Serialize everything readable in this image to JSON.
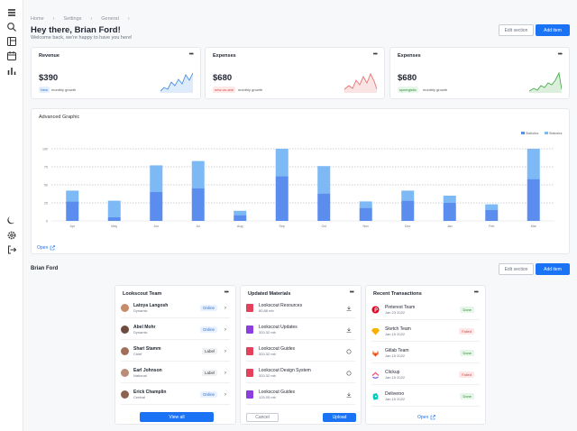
{
  "breadcrumbs": [
    "Home",
    "Settings",
    "General"
  ],
  "header": {
    "title": "Hey there, Brian Ford!",
    "subtitle": "Welcome back, we're happy to have you here!",
    "edit_label": "Edit section",
    "add_label": "Add item"
  },
  "kpis": [
    {
      "title": "Revenue",
      "value": "$390",
      "badge": "New",
      "note": "monthly growth",
      "color": "#4a90e2"
    },
    {
      "title": "Expenses",
      "value": "$680",
      "badge": "new-on-ane",
      "note": "monthly growth",
      "color": "#e57373"
    },
    {
      "title": "Expenses",
      "value": "$680",
      "badge": "synergistic",
      "note": "monthly growth",
      "color": "#4caf50"
    }
  ],
  "chart_data": {
    "type": "bar",
    "title": "Advanced Graphic",
    "categories": [
      "Apr",
      "May",
      "Jun",
      "Jul",
      "Aug",
      "Sep",
      "Oct",
      "Nov",
      "Dec",
      "Jan",
      "Feb",
      "Mar"
    ],
    "series": [
      {
        "name": "Statistics",
        "values": [
          27,
          5,
          40,
          45,
          8,
          62,
          38,
          18,
          28,
          25,
          15,
          58
        ]
      },
      {
        "name": "Statistics",
        "values": [
          15,
          23,
          37,
          38,
          6,
          38,
          38,
          9,
          14,
          10,
          8,
          42
        ]
      }
    ],
    "ylim": [
      0,
      100
    ],
    "yticks": [
      0,
      25,
      50,
      75,
      100
    ],
    "stacked": true,
    "legend_position": "top-right",
    "colors": [
      "#5b8def",
      "#7cb9f5"
    ],
    "open_label": "Open"
  },
  "section2": {
    "title": "Brian Ford",
    "edit_label": "Edit section",
    "add_label": "Add item"
  },
  "team": {
    "title": "Lookscout Team",
    "members": [
      {
        "name": "Latoya Langosh",
        "role": "Dynamic",
        "tag": "Online"
      },
      {
        "name": "Abel Mohr",
        "role": "Dynamic",
        "tag": "Online"
      },
      {
        "name": "Shari Stamm",
        "role": "Chief",
        "tag": "Label"
      },
      {
        "name": "Earl Johnson",
        "role": "National",
        "tag": "Label"
      },
      {
        "name": "Erick Champlin",
        "role": "Central",
        "tag": "Online"
      }
    ],
    "view_all_label": "View all"
  },
  "materials": {
    "title": "Updated Materials",
    "items": [
      {
        "name": "Lookscout Resources",
        "size": "80.88 mb",
        "color": "#e2435a"
      },
      {
        "name": "Lookscout Updates",
        "size": "320.32 mb",
        "color": "#8b3fdc"
      },
      {
        "name": "Lookscout Guides",
        "size": "320.32 mb",
        "color": "#e2435a"
      },
      {
        "name": "Lookscout Design System",
        "size": "320.32 mb",
        "color": "#e2435a"
      },
      {
        "name": "Lookscout Guides",
        "size": "125.05 mb",
        "color": "#8b3fdc"
      }
    ],
    "cancel_label": "Cancel",
    "upload_label": "Upload"
  },
  "transactions": {
    "title": "Recent Transactions",
    "items": [
      {
        "name": "Pinterest Team",
        "date": "Jan 23 2022",
        "status": "Done",
        "logo_color": "#e60023"
      },
      {
        "name": "Sketch Team",
        "date": "Jan 15 2022",
        "status": "Failed",
        "logo_color": "#f7b500"
      },
      {
        "name": "Gitlab Team",
        "date": "Jan 15 2022",
        "status": "Done",
        "logo_color": "#fc6d26"
      },
      {
        "name": "Clickup",
        "date": "Jan 15 2022",
        "status": "Failed",
        "logo_color": "#7b68ee"
      },
      {
        "name": "Deliveroo",
        "date": "Jan 15 2022",
        "status": "Done",
        "logo_color": "#00ccbc"
      }
    ],
    "open_label": "Open"
  }
}
